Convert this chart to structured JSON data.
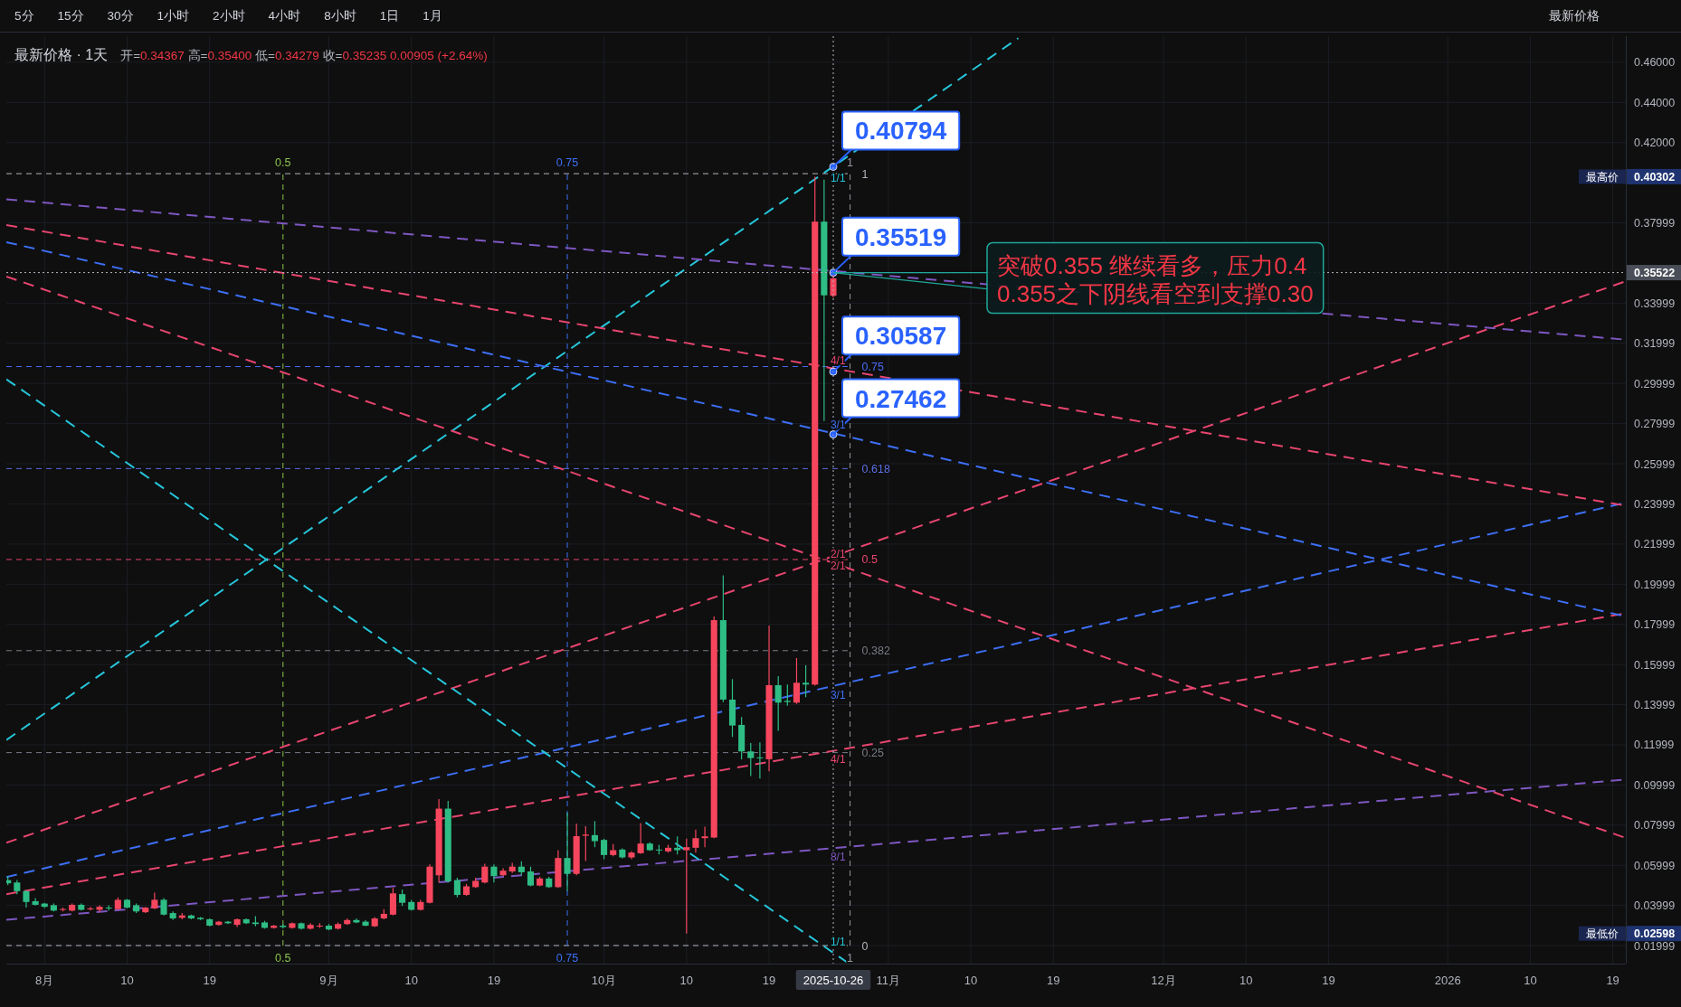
{
  "chart_data": {
    "type": "candlestick",
    "title": "最新价格 · 1天",
    "subtitle": "开=0.34367 高=0.35400 低=0.34279 收=0.35235 0.00905 (+2.64%)",
    "xlim": [
      "2025-07-27T20:00",
      "2026-01-20T10:00"
    ],
    "ylim": [
      0.011,
      0.473
    ],
    "xticks": [
      {
        "value": "2025-08-01",
        "label": "8月"
      },
      {
        "value": "2025-08-10",
        "label": "10"
      },
      {
        "value": "2025-08-19",
        "label": "19"
      },
      {
        "value": "2025-09-01",
        "label": "9月"
      },
      {
        "value": "2025-09-10",
        "label": "10"
      },
      {
        "value": "2025-09-19",
        "label": "19"
      },
      {
        "value": "2025-10-01",
        "label": "10月"
      },
      {
        "value": "2025-10-10",
        "label": "10"
      },
      {
        "value": "2025-10-19",
        "label": "19"
      },
      {
        "value": "2025-11-01",
        "label": "11月"
      },
      {
        "value": "2025-11-10",
        "label": "10"
      },
      {
        "value": "2025-11-19",
        "label": "19"
      },
      {
        "value": "2025-12-01",
        "label": "12月"
      },
      {
        "value": "2025-12-10",
        "label": "10"
      },
      {
        "value": "2025-12-19",
        "label": "19"
      },
      {
        "value": "2026-01-01",
        "label": "2026"
      },
      {
        "value": "2026-01-10",
        "label": "10"
      },
      {
        "value": "2026-01-19",
        "label": "19"
      }
    ],
    "yticks": [
      {
        "value": 0.46,
        "label": "0.46000"
      },
      {
        "value": 0.44,
        "label": "0.44000"
      },
      {
        "value": 0.42,
        "label": "0.42000"
      },
      0.37999,
      0.33999,
      0.31999,
      0.29999,
      0.27999,
      0.25999,
      0.23999,
      0.21999,
      0.19999,
      0.17999,
      0.15999,
      0.13999,
      0.11999,
      0.09999,
      0.07999,
      0.05999,
      0.03999,
      0.01999
    ],
    "grid": true,
    "series": [
      {
        "type": "line",
        "name": "0",
        "color": "#b2b5be",
        "line_style": "dashed",
        "x": [
          "2025-07-27T20:00",
          "2025-10-27T20:00"
        ],
        "values": [
          0.02,
          0.02
        ]
      },
      {
        "type": "line",
        "name": "0.25",
        "color": "#787b86",
        "line_style": "dashed",
        "x": [
          "2025-07-27T20:00",
          "2025-10-27T20:00"
        ],
        "values": [
          0.1161,
          0.1161
        ]
      },
      {
        "type": "line",
        "name": "0.382",
        "color": "#787b86",
        "line_style": "dashed",
        "x": [
          "2025-07-27T20:00",
          "2025-10-27T20:00"
        ],
        "values": [
          0.1669,
          0.1669
        ]
      },
      {
        "type": "line",
        "name": "0.5",
        "color": "#e8456f",
        "line_style": "dashed",
        "x": [
          "2025-07-27T20:00",
          "2025-10-27T20:00"
        ],
        "values": [
          0.2123,
          0.2123
        ]
      },
      {
        "type": "line",
        "name": "0.618",
        "color": "#5b6ee1",
        "line_style": "dashed",
        "x": [
          "2025-07-27T20:00",
          "2025-10-27T20:00"
        ],
        "values": [
          0.2576,
          0.2576
        ]
      },
      {
        "type": "line",
        "name": "0.75",
        "color": "#4a6cf7",
        "line_style": "dashed",
        "x": [
          "2025-07-27T20:00",
          "2025-10-27T20:00"
        ],
        "values": [
          0.3084,
          0.3084
        ]
      },
      {
        "type": "line",
        "name": "1",
        "color": "#b2b5be",
        "line_style": "dashed",
        "x": [
          "2025-07-27T20:00",
          "2025-10-27T20:00"
        ],
        "values": [
          0.4045,
          0.4045
        ]
      },
      {
        "type": "line",
        "name": "0.5",
        "color": "#8bc34a",
        "line_style": "dashed",
        "x": [
          "2025-08-27",
          "2025-08-27"
        ],
        "values": [
          0.02,
          0.4045
        ]
      },
      {
        "type": "line",
        "name": "0.75",
        "color": "#3d6ff5",
        "line_style": "dashed",
        "x": [
          "2025-09-27",
          "2025-09-27"
        ],
        "values": [
          0.02,
          0.4045
        ]
      },
      {
        "type": "line",
        "name": "1",
        "color": "#9598a1",
        "line_style": "dashed",
        "x": [
          "2025-10-27T20:00",
          "2025-10-27T20:00"
        ],
        "values": [
          0.02,
          0.4045
        ]
      },
      {
        "type": "line",
        "name": "1/1",
        "color": "#26c6da",
        "line_style": "dashed",
        "x": [
          "2025-07-27T20:00",
          "2025-10-25T12:00",
          "2025-11-15T04:00"
        ],
        "values": [
          0.1224,
          0.4065,
          0.472
        ]
      },
      {
        "type": "line",
        "name": "2/1",
        "color": "#e8456f",
        "line_style": "dashed",
        "x": [
          "2025-07-27T20:00",
          "2025-10-25T12:00",
          "2026-01-20T10:00"
        ],
        "values": [
          0.0712,
          0.2132,
          0.3509
        ]
      },
      {
        "type": "line",
        "name": "3/1",
        "color": "#3d6ff5",
        "line_style": "dashed",
        "x": [
          "2025-07-27T20:00",
          "2025-10-25T12:00",
          "2026-01-20T10:00"
        ],
        "values": [
          0.0541,
          0.1488,
          0.2406
        ]
      },
      {
        "type": "line",
        "name": "4/1",
        "color": "#e8456f",
        "line_style": "dashed",
        "x": [
          "2025-07-27T20:00",
          "2025-10-25T12:00",
          "2026-01-20T10:00"
        ],
        "values": [
          0.0456,
          0.1166,
          0.1855
        ]
      },
      {
        "type": "line",
        "name": "8/1",
        "color": "#7e57c2",
        "line_style": "dashed",
        "x": [
          "2025-07-27T20:00",
          "2025-10-25T12:00",
          "2026-01-20T10:00"
        ],
        "values": [
          0.0328,
          0.0683,
          0.1027
        ]
      },
      {
        "type": "line",
        "name": "1/1",
        "color": "#26c6da",
        "line_style": "dashed",
        "x": [
          "2025-07-27T20:00",
          "2025-10-25T12:00",
          "2025-10-27T12:00"
        ],
        "values": [
          0.3021,
          0.018,
          0.0117
        ]
      },
      {
        "type": "line",
        "name": "2/1",
        "color": "#e8456f",
        "line_style": "dashed",
        "x": [
          "2025-07-27T20:00",
          "2025-10-25T12:00",
          "2026-01-20T10:00"
        ],
        "values": [
          0.3533,
          0.2113,
          0.0736
        ]
      },
      {
        "type": "line",
        "name": "3/1",
        "color": "#3d6ff5",
        "line_style": "dashed",
        "x": [
          "2025-07-27T20:00",
          "2025-10-25T12:00",
          "2026-01-20T10:00"
        ],
        "values": [
          0.3704,
          0.2757,
          0.1839
        ]
      },
      {
        "type": "line",
        "name": "4/1",
        "color": "#e8456f",
        "line_style": "dashed",
        "x": [
          "2025-07-27T20:00",
          "2025-10-25T12:00",
          "2026-01-20T10:00"
        ],
        "values": [
          0.3789,
          0.3079,
          0.2391
        ]
      },
      {
        "type": "line",
        "color": "#7e57c2",
        "line_style": "dashed",
        "x": [
          "2025-07-27T20:00",
          "2025-10-25T12:00",
          "2026-01-20T10:00"
        ],
        "values": [
          0.3917,
          0.3562,
          0.3218
        ]
      },
      {
        "type": "scatter",
        "color": "#2962ff",
        "marker": "circle",
        "x": [
          "2025-10-26",
          "2025-10-26",
          "2025-10-26",
          "2025-10-26"
        ],
        "values": [
          0.40794,
          0.35519,
          0.30587,
          0.27462
        ],
        "value_labels": [
          "0.40794",
          "0.35519",
          "0.30587",
          "0.27462"
        ]
      },
      {
        "x": [
          "2025-07-28",
          "2025-07-29",
          "2025-07-30",
          "2025-07-31",
          "2025-08-01",
          "2025-08-02",
          "2025-08-03",
          "2025-08-04",
          "2025-08-05",
          "2025-08-06",
          "2025-08-07",
          "2025-08-08",
          "2025-08-09",
          "2025-08-10",
          "2025-08-11",
          "2025-08-12",
          "2025-08-13",
          "2025-08-14",
          "2025-08-15",
          "2025-08-16",
          "2025-08-17",
          "2025-08-18",
          "2025-08-19",
          "2025-08-20",
          "2025-08-21",
          "2025-08-22",
          "2025-08-23",
          "2025-08-24",
          "2025-08-25",
          "2025-08-26",
          "2025-08-27",
          "2025-08-28",
          "2025-08-29",
          "2025-08-30",
          "2025-08-31",
          "2025-09-01",
          "2025-09-02",
          "2025-09-03",
          "2025-09-04",
          "2025-09-05",
          "2025-09-06",
          "2025-09-07",
          "2025-09-08",
          "2025-09-09",
          "2025-09-10",
          "2025-09-11",
          "2025-09-12",
          "2025-09-13",
          "2025-09-14",
          "2025-09-15",
          "2025-09-16",
          "2025-09-17",
          "2025-09-18",
          "2025-09-19",
          "2025-09-20",
          "2025-09-21",
          "2025-09-22",
          "2025-09-23",
          "2025-09-24",
          "2025-09-25",
          "2025-09-26",
          "2025-09-27",
          "2025-09-28",
          "2025-09-29",
          "2025-09-30",
          "2025-10-01",
          "2025-10-02",
          "2025-10-03",
          "2025-10-04",
          "2025-10-05",
          "2025-10-06",
          "2025-10-07",
          "2025-10-08",
          "2025-10-09",
          "2025-10-10",
          "2025-10-11",
          "2025-10-12",
          "2025-10-13",
          "2025-10-14",
          "2025-10-15",
          "2025-10-16",
          "2025-10-17",
          "2025-10-18",
          "2025-10-19",
          "2025-10-20",
          "2025-10-21",
          "2025-10-22",
          "2025-10-23",
          "2025-10-24",
          "2025-10-25",
          "2025-10-26"
        ],
        "ohlc": [
          [
            0.0526,
            0.0546,
            0.0501,
            0.051
          ],
          [
            0.0514,
            0.0526,
            0.0456,
            0.0471
          ],
          [
            0.0471,
            0.0475,
            0.0389,
            0.0417
          ],
          [
            0.0421,
            0.0436,
            0.0399,
            0.0403
          ],
          [
            0.0409,
            0.0413,
            0.0387,
            0.0393
          ],
          [
            0.0401,
            0.0409,
            0.037,
            0.0374
          ],
          [
            0.0378,
            0.0389,
            0.037,
            0.0382
          ],
          [
            0.0374,
            0.0409,
            0.037,
            0.0403
          ],
          [
            0.0403,
            0.0409,
            0.0374,
            0.0378
          ],
          [
            0.0381,
            0.0393,
            0.0374,
            0.0385
          ],
          [
            0.0378,
            0.0401,
            0.0366,
            0.0393
          ],
          [
            0.0389,
            0.0401,
            0.0374,
            0.0385
          ],
          [
            0.0381,
            0.044,
            0.0378,
            0.0428
          ],
          [
            0.0428,
            0.0432,
            0.0385,
            0.0389
          ],
          [
            0.0401,
            0.0409,
            0.0362,
            0.037
          ],
          [
            0.0366,
            0.0393,
            0.0362,
            0.0389
          ],
          [
            0.0385,
            0.0464,
            0.0381,
            0.0428
          ],
          [
            0.0428,
            0.0436,
            0.035,
            0.0354
          ],
          [
            0.0362,
            0.037,
            0.0327,
            0.0335
          ],
          [
            0.0338,
            0.0362,
            0.0331,
            0.035
          ],
          [
            0.035,
            0.0354,
            0.0331,
            0.0335
          ],
          [
            0.0338,
            0.0342,
            0.0327,
            0.0331
          ],
          [
            0.0331,
            0.0335,
            0.0296,
            0.0299
          ],
          [
            0.0303,
            0.0323,
            0.0299,
            0.0319
          ],
          [
            0.0319,
            0.0323,
            0.0307,
            0.0311
          ],
          [
            0.0303,
            0.0335,
            0.0292,
            0.0331
          ],
          [
            0.0331,
            0.0335,
            0.0307,
            0.0311
          ],
          [
            0.0315,
            0.0346,
            0.0296,
            0.0307
          ],
          [
            0.0315,
            0.0323,
            0.0284,
            0.0288
          ],
          [
            0.0288,
            0.0303,
            0.0284,
            0.0299
          ],
          [
            0.0299,
            0.0307,
            0.0284,
            0.0292
          ],
          [
            0.0288,
            0.0315,
            0.0284,
            0.0311
          ],
          [
            0.0311,
            0.0315,
            0.028,
            0.0284
          ],
          [
            0.0284,
            0.0311,
            0.028,
            0.0303
          ],
          [
            0.0295,
            0.0311,
            0.0288,
            0.0299
          ],
          [
            0.0299,
            0.0307,
            0.0276,
            0.028
          ],
          [
            0.0284,
            0.0315,
            0.028,
            0.0307
          ],
          [
            0.0307,
            0.0335,
            0.0303,
            0.0327
          ],
          [
            0.0327,
            0.0335,
            0.0311,
            0.0315
          ],
          [
            0.0319,
            0.0327,
            0.0296,
            0.0299
          ],
          [
            0.0296,
            0.0342,
            0.0292,
            0.0335
          ],
          [
            0.0335,
            0.0381,
            0.0331,
            0.0358
          ],
          [
            0.0354,
            0.0487,
            0.035,
            0.046
          ],
          [
            0.0456,
            0.0479,
            0.0397,
            0.0413
          ],
          [
            0.0417,
            0.0428,
            0.0374,
            0.0378
          ],
          [
            0.0378,
            0.0428,
            0.0374,
            0.0417
          ],
          [
            0.0413,
            0.0604,
            0.0409,
            0.0593
          ],
          [
            0.055,
            0.0929,
            0.0514,
            0.0882
          ],
          [
            0.0882,
            0.0921,
            0.0514,
            0.052
          ],
          [
            0.0526,
            0.0538,
            0.044,
            0.0452
          ],
          [
            0.0452,
            0.0507,
            0.0448,
            0.0495
          ],
          [
            0.0491,
            0.0538,
            0.0487,
            0.0522
          ],
          [
            0.0514,
            0.0608,
            0.051,
            0.0593
          ],
          [
            0.0593,
            0.0604,
            0.0514,
            0.0546
          ],
          [
            0.055,
            0.0585,
            0.0546,
            0.0573
          ],
          [
            0.0569,
            0.0612,
            0.0561,
            0.0593
          ],
          [
            0.0593,
            0.062,
            0.055,
            0.0565
          ],
          [
            0.0569,
            0.0593,
            0.0495,
            0.0499
          ],
          [
            0.0499,
            0.0542,
            0.0495,
            0.0534
          ],
          [
            0.0534,
            0.0542,
            0.0487,
            0.0491
          ],
          [
            0.0491,
            0.0675,
            0.0487,
            0.0636
          ],
          [
            0.0636,
            0.0862,
            0.0471,
            0.0557
          ],
          [
            0.0557,
            0.0807,
            0.055,
            0.0745
          ],
          [
            0.0747,
            0.0795,
            0.0621,
            0.0753
          ],
          [
            0.075,
            0.082,
            0.069,
            0.072
          ],
          [
            0.0726,
            0.0732,
            0.063,
            0.0651
          ],
          [
            0.0651,
            0.0705,
            0.0645,
            0.0675
          ],
          [
            0.0678,
            0.0684,
            0.0633,
            0.0639
          ],
          [
            0.0639,
            0.0669,
            0.063,
            0.0663
          ],
          [
            0.066,
            0.081,
            0.0657,
            0.0708
          ],
          [
            0.0708,
            0.0714,
            0.0672,
            0.0675
          ],
          [
            0.0678,
            0.0702,
            0.0654,
            0.0675
          ],
          [
            0.0669,
            0.0702,
            0.0663,
            0.0687
          ],
          [
            0.0687,
            0.0744,
            0.0654,
            0.0675
          ],
          [
            0.0675,
            0.0732,
            0.02598,
            0.069
          ],
          [
            0.0687,
            0.0777,
            0.0663,
            0.0735
          ],
          [
            0.0735,
            0.0792,
            0.069,
            0.0744
          ],
          [
            0.0738,
            0.1839,
            0.0735,
            0.1821
          ],
          [
            0.1821,
            0.2044,
            0.1413,
            0.1425
          ],
          [
            0.1425,
            0.1527,
            0.1239,
            0.1296
          ],
          [
            0.1299,
            0.1338,
            0.1128,
            0.1167
          ],
          [
            0.1167,
            0.1209,
            0.1044,
            0.1134
          ],
          [
            0.1137,
            0.1212,
            0.1032,
            0.1134
          ],
          [
            0.1128,
            0.1794,
            0.1068,
            0.1497
          ],
          [
            0.1497,
            0.1542,
            0.1269,
            0.141
          ],
          [
            0.1419,
            0.15,
            0.1395,
            0.1413
          ],
          [
            0.141,
            0.1632,
            0.1404,
            0.1509
          ],
          [
            0.1509,
            0.1596,
            0.1437,
            0.15
          ],
          [
            0.15,
            0.40302,
            0.1495,
            0.3806
          ],
          [
            0.3806,
            0.4015,
            0.2813,
            0.3439
          ],
          [
            0.34367,
            0.354,
            0.34279,
            0.35235
          ]
        ],
        "colors": [
          "#2ebd85",
          "#2ebd85",
          "#2ebd85",
          "#2ebd85",
          "#2ebd85",
          "#2ebd85",
          "#f6465d",
          "#f6465d",
          "#2ebd85",
          "#f6465d",
          "#f6465d",
          "#2ebd85",
          "#f6465d",
          "#2ebd85",
          "#2ebd85",
          "#f6465d",
          "#f6465d",
          "#2ebd85",
          "#2ebd85",
          "#f6465d",
          "#2ebd85",
          "#2ebd85",
          "#2ebd85",
          "#f6465d",
          "#2ebd85",
          "#f6465d",
          "#2ebd85",
          "#2ebd85",
          "#2ebd85",
          "#f6465d",
          "#2ebd85",
          "#f6465d",
          "#2ebd85",
          "#f6465d",
          "#f6465d",
          "#2ebd85",
          "#f6465d",
          "#f6465d",
          "#2ebd85",
          "#2ebd85",
          "#f6465d",
          "#f6465d",
          "#f6465d",
          "#2ebd85",
          "#2ebd85",
          "#f6465d",
          "#f6465d",
          "#f6465d",
          "#2ebd85",
          "#2ebd85",
          "#f6465d",
          "#f6465d",
          "#f6465d",
          "#2ebd85",
          "#f6465d",
          "#f6465d",
          "#2ebd85",
          "#2ebd85",
          "#f6465d",
          "#2ebd85",
          "#f6465d",
          "#2ebd85",
          "#f6465d",
          "#f6465d",
          "#2ebd85",
          "#2ebd85",
          "#f6465d",
          "#2ebd85",
          "#f6465d",
          "#f6465d",
          "#2ebd85",
          "#2ebd85",
          "#f6465d",
          "#2ebd85",
          "#f6465d",
          "#f6465d",
          "#f6465d",
          "#f6465d",
          "#2ebd85",
          "#2ebd85",
          "#2ebd85",
          "#2ebd85",
          "#2ebd85",
          "#f6465d",
          "#2ebd85",
          "#2ebd85",
          "#f6465d",
          "#2ebd85",
          "#f6465d",
          "#2ebd85",
          "#f6465d"
        ]
      }
    ],
    "ref_lines": [
      {
        "axis": "x",
        "value": "2025-10-26",
        "label": "2025-10-26",
        "color": "#b2b5be",
        "line_style": "dotted"
      },
      {
        "axis": "y",
        "value": 0.35522,
        "label": "0.35522",
        "color": "#b2b5be",
        "line_style": "dotted"
      }
    ],
    "annotations": [
      "5分",
      "15分",
      "30分",
      "1小时",
      "2小时",
      "4小时",
      "8小时",
      "1日",
      "1月",
      "最新价格",
      "最高价 0.40302",
      "最低价 0.02598",
      {
        "text": "突破0.355 继续看多，压力0.4\n0.355之下阴线看空到支撑0.30",
        "x": "2025-10-26",
        "y": 0.3552
      }
    ]
  }
}
